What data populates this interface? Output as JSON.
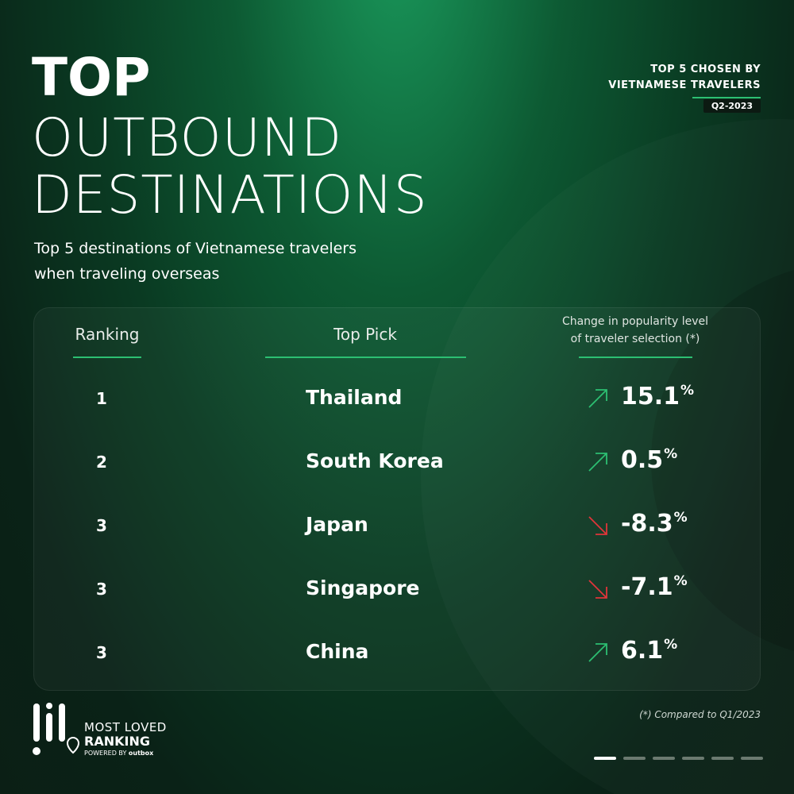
{
  "header": {
    "title_lines": [
      "TOP",
      "OUTBOUND",
      "DESTINATIONS"
    ],
    "subtitle_lines": [
      "Top 5 destinations of Vietnamese travelers",
      "when traveling overseas"
    ],
    "tag_lines": [
      "TOP 5 CHOSEN BY",
      "VIETNAMESE TRAVELERS"
    ],
    "badge": "Q2-2023"
  },
  "table": {
    "columns": [
      [
        "Ranking"
      ],
      [
        "Top Pick"
      ],
      [
        "Change in popularity level",
        "of traveler selection (*)"
      ]
    ],
    "rows": [
      {
        "rank": "1",
        "destination": "Thailand",
        "change": 15.1,
        "unit": "%"
      },
      {
        "rank": "2",
        "destination": "South Korea",
        "change": 0.5,
        "unit": "%"
      },
      {
        "rank": "3",
        "destination": "Japan",
        "change": -8.3,
        "unit": "%"
      },
      {
        "rank": "3",
        "destination": "Singapore",
        "change": -7.1,
        "unit": "%"
      },
      {
        "rank": "3",
        "destination": "China",
        "change": 6.1,
        "unit": "%"
      }
    ]
  },
  "footnote": "(*) Compared to Q1/2023",
  "logo": {
    "line1": "MOST LOVED",
    "line2": "RANKING",
    "powered_by": "POWERED BY",
    "brand": "outbox"
  }
}
